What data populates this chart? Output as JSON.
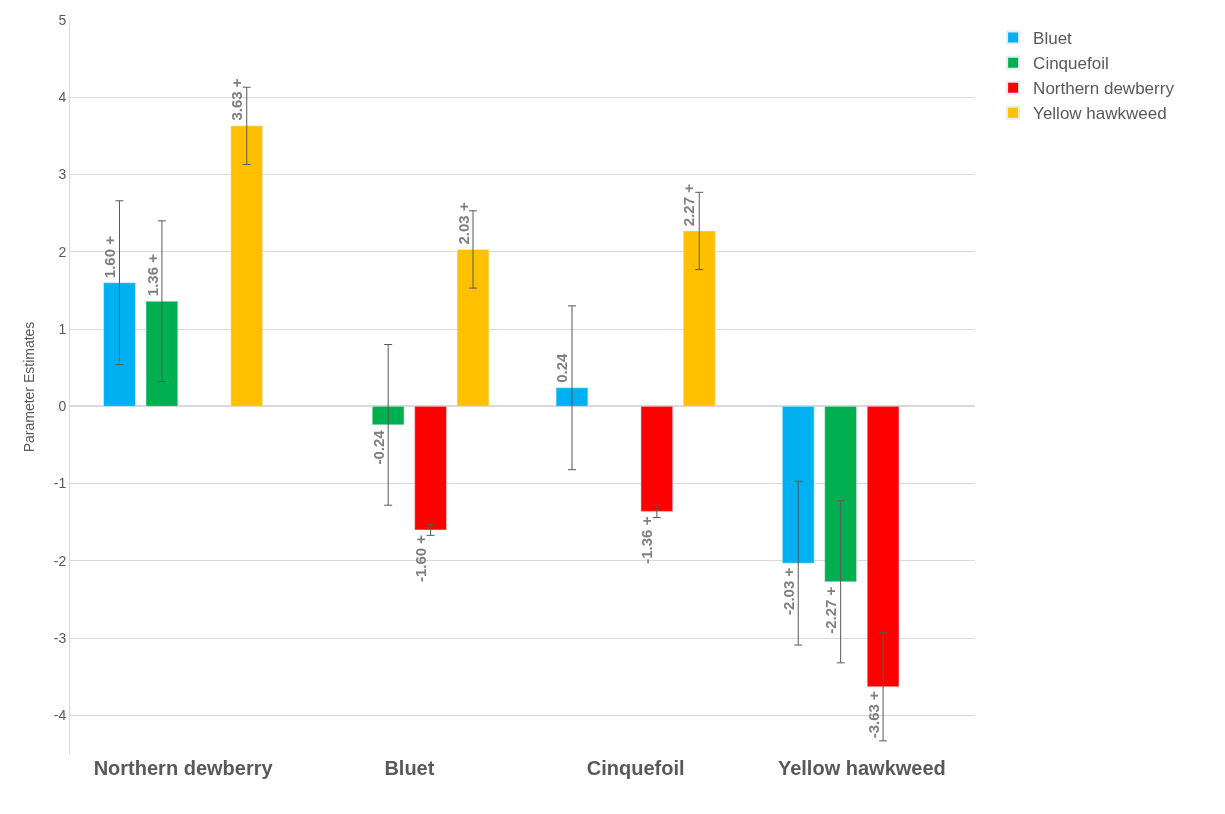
{
  "chart_data": {
    "type": "bar",
    "ylabel": "Parameter Estimates",
    "categories": [
      "Northern dewberry",
      "Bluet",
      "Cinquefoil",
      "Yellow hawkweed"
    ],
    "series": [
      {
        "name": "Bluet",
        "color": "#00b0f0",
        "values": [
          1.6,
          null,
          0.24,
          -2.03
        ],
        "errors": [
          1.06,
          null,
          1.06,
          1.06
        ],
        "value_labels": [
          "1.60 +",
          null,
          "0.24",
          "-2.03 +"
        ]
      },
      {
        "name": "Cinquefoil",
        "color": "#00b050",
        "values": [
          1.36,
          -0.24,
          null,
          -2.27
        ],
        "errors": [
          1.04,
          1.04,
          null,
          1.05
        ],
        "value_labels": [
          "1.36 +",
          "-0.24",
          null,
          "-2.27 +"
        ]
      },
      {
        "name": "Northern dewberry",
        "color": "#ff0000",
        "values": [
          null,
          -1.6,
          -1.36,
          -3.63
        ],
        "errors": [
          null,
          0.07,
          0.08,
          0.7
        ],
        "value_labels": [
          null,
          "-1.60 +",
          "-1.36 +",
          "-3.63 +"
        ]
      },
      {
        "name": "Yellow hawkweed",
        "color": "#ffc000",
        "values": [
          3.63,
          2.03,
          2.27,
          null
        ],
        "errors": [
          0.5,
          0.5,
          0.5,
          null
        ],
        "value_labels": [
          "3.63 +",
          "2.03 +",
          "2.27 +",
          null
        ]
      }
    ],
    "ylim": [
      -4.5,
      5
    ],
    "yticks": [
      -4,
      -3,
      -2,
      -1,
      0,
      1,
      2,
      3,
      4,
      5
    ],
    "grid": "y",
    "legend": "top right"
  }
}
